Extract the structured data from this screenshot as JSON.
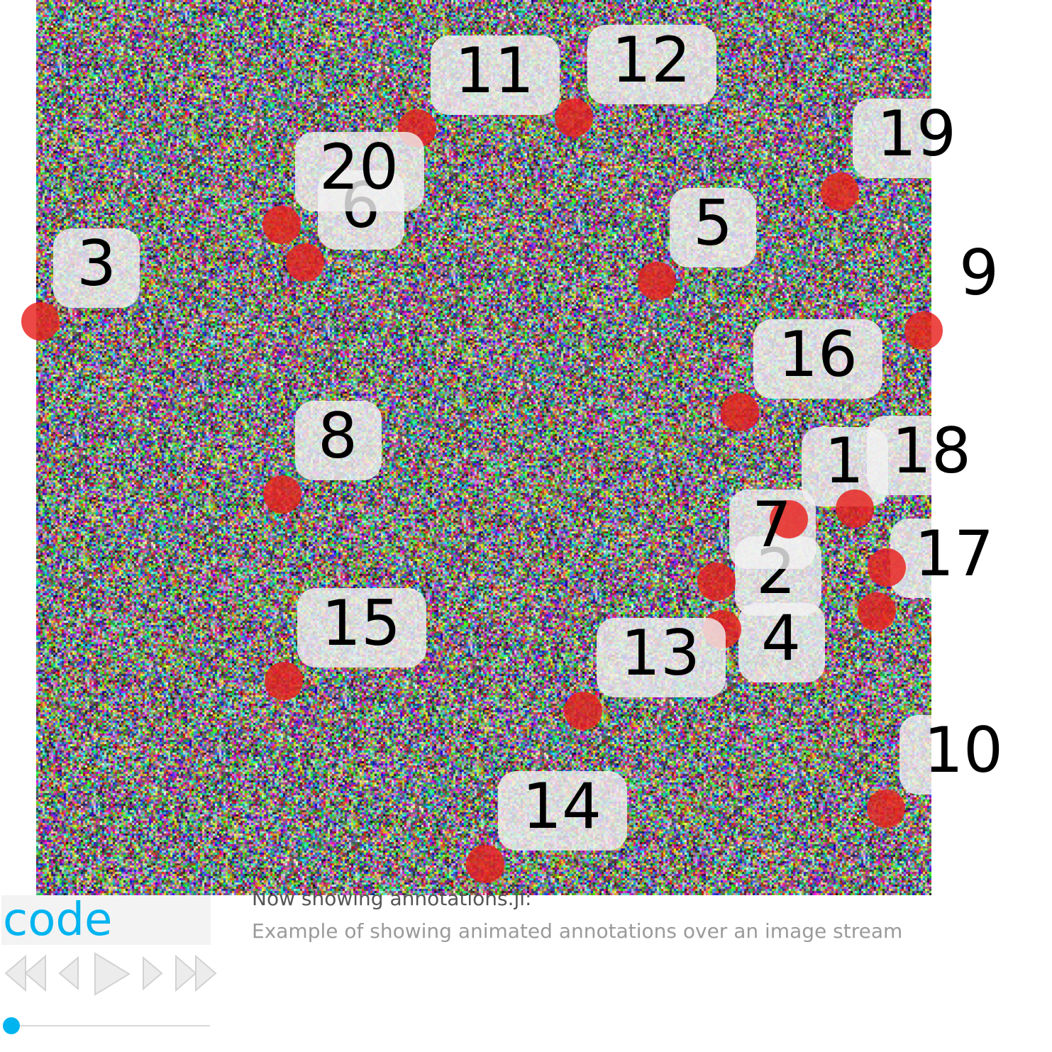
{
  "image": {
    "content": "random RGB noise frame"
  },
  "annotations": [
    {
      "label": "1"
    },
    {
      "label": "2"
    },
    {
      "label": "3"
    },
    {
      "label": "4"
    },
    {
      "label": "5"
    },
    {
      "label": "6"
    },
    {
      "label": "7"
    },
    {
      "label": "8"
    },
    {
      "label": "9"
    },
    {
      "label": "10"
    },
    {
      "label": "11"
    },
    {
      "label": "12"
    },
    {
      "label": "13"
    },
    {
      "label": "14"
    },
    {
      "label": "15"
    },
    {
      "label": "16"
    },
    {
      "label": "17"
    },
    {
      "label": "18"
    },
    {
      "label": "19"
    },
    {
      "label": "20"
    }
  ],
  "colors": {
    "point": "#e8201c",
    "label_box": "#f2f2f2",
    "accent": "#00b4f0"
  },
  "controls": {
    "code_label": "code",
    "buttons": [
      "first-frame-icon",
      "previous-frame-icon",
      "play-icon",
      "next-frame-icon",
      "last-frame-icon"
    ],
    "frame_progress": 0
  },
  "caption": {
    "title": "Now showing annotations.jl:",
    "subtitle": "Example of showing animated annotations over an image stream"
  }
}
